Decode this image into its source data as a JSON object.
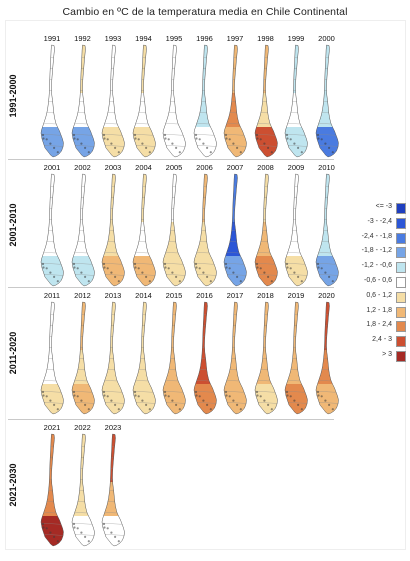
{
  "title": "Cambio en ºC de la temperatura media en Chile Continental",
  "legend": [
    {
      "label": "<= -3",
      "color": "#1f3fbf"
    },
    {
      "label": "-3 - -2,4",
      "color": "#2c56d6"
    },
    {
      "label": "-2,4 - -1,8",
      "color": "#4a7be0"
    },
    {
      "label": "-1,8 - -1,2",
      "color": "#76a4e6"
    },
    {
      "label": "-1,2 - -0,6",
      "color": "#bfe5ef"
    },
    {
      "label": "-0,6 - 0,6",
      "color": "#ffffff"
    },
    {
      "label": "0,6 - 1,2",
      "color": "#f5dea6"
    },
    {
      "label": "1,2 - 1,8",
      "color": "#f0b876"
    },
    {
      "label": "1,8 - 2,4",
      "color": "#e3894d"
    },
    {
      "label": "2,4 - 3",
      "color": "#cc4f31"
    },
    {
      "label": "> 3",
      "color": "#a52a24"
    }
  ],
  "decades": [
    {
      "label": "1991-2000",
      "years": [
        {
          "year": "1991",
          "north": 5,
          "center": 5,
          "south": 3
        },
        {
          "year": "1992",
          "north": 6,
          "center": 5,
          "south": 3
        },
        {
          "year": "1993",
          "north": 5,
          "center": 5,
          "south": 6
        },
        {
          "year": "1994",
          "north": 6,
          "center": 5,
          "south": 6
        },
        {
          "year": "1995",
          "north": 5,
          "center": 5,
          "south": 5
        },
        {
          "year": "1996",
          "north": 4,
          "center": 4,
          "south": 5
        },
        {
          "year": "1997",
          "north": 7,
          "center": 8,
          "south": 7
        },
        {
          "year": "1998",
          "north": 7,
          "center": 6,
          "south": 9
        },
        {
          "year": "1999",
          "north": 4,
          "center": 5,
          "south": 4
        },
        {
          "year": "2000",
          "north": 4,
          "center": 4,
          "south": 2
        }
      ]
    },
    {
      "label": "2001-2010",
      "years": [
        {
          "year": "2001",
          "north": 5,
          "center": 5,
          "south": 4
        },
        {
          "year": "2002",
          "north": 5,
          "center": 5,
          "south": 4
        },
        {
          "year": "2003",
          "north": 6,
          "center": 6,
          "south": 7
        },
        {
          "year": "2004",
          "north": 6,
          "center": 5,
          "south": 7
        },
        {
          "year": "2005",
          "north": 5,
          "center": 6,
          "south": 6
        },
        {
          "year": "2006",
          "north": 7,
          "center": 6,
          "south": 6
        },
        {
          "year": "2007",
          "north": 2,
          "center": 1,
          "south": 3
        },
        {
          "year": "2008",
          "north": 6,
          "center": 7,
          "south": 8
        },
        {
          "year": "2009",
          "north": 5,
          "center": 5,
          "south": 6
        },
        {
          "year": "2010",
          "north": 4,
          "center": 4,
          "south": 3
        }
      ]
    },
    {
      "label": "2011-2020",
      "years": [
        {
          "year": "2011",
          "north": 5,
          "center": 5,
          "south": 6
        },
        {
          "year": "2012",
          "north": 7,
          "center": 6,
          "south": 7
        },
        {
          "year": "2013",
          "north": 6,
          "center": 6,
          "south": 6
        },
        {
          "year": "2014",
          "north": 6,
          "center": 6,
          "south": 6
        },
        {
          "year": "2015",
          "north": 7,
          "center": 7,
          "south": 7
        },
        {
          "year": "2016",
          "north": 9,
          "center": 9,
          "south": 8
        },
        {
          "year": "2017",
          "north": 7,
          "center": 7,
          "south": 7
        },
        {
          "year": "2018",
          "north": 7,
          "center": 7,
          "south": 6
        },
        {
          "year": "2019",
          "north": 7,
          "center": 7,
          "south": 8
        },
        {
          "year": "2020",
          "north": 9,
          "center": 8,
          "south": 7
        }
      ]
    },
    {
      "label": "2021-2030",
      "years": [
        {
          "year": "2021",
          "north": 8,
          "center": 8,
          "south": 10
        },
        {
          "year": "2022",
          "north": 6,
          "center": 6,
          "south": 5
        },
        {
          "year": "2023",
          "north": 9,
          "center": 7,
          "south": 5
        }
      ]
    }
  ]
}
